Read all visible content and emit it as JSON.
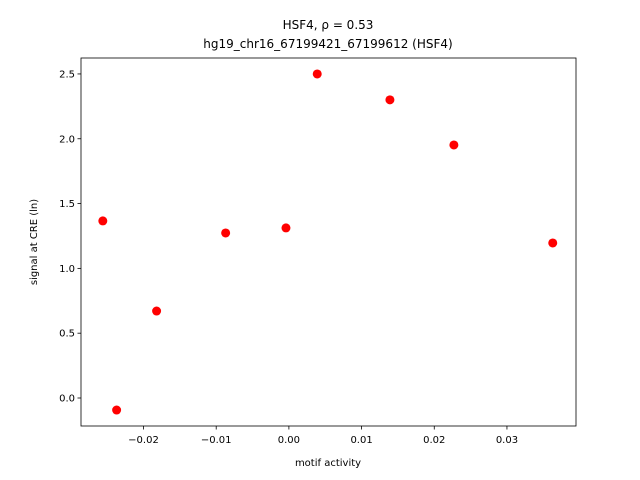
{
  "chart_data": {
    "type": "scatter",
    "title": "HSF4, ρ = 0.53",
    "subtitle": "hg19_chr16_67199421_67199612 (HSF4)",
    "x_label": "motif activity",
    "y_label": "signal at CRE (ln)",
    "color": "#ff0000",
    "x": [
      -0.0256,
      -0.0237,
      -0.0182,
      -0.0087,
      -0.0004,
      0.0039,
      0.0139,
      0.0227,
      0.0363
    ],
    "values": [
      1.366,
      -0.093,
      0.671,
      1.273,
      1.312,
      2.5,
      2.3,
      1.952,
      1.196
    ],
    "xlim": [
      -0.0286,
      0.0395
    ],
    "ylim": [
      -0.216,
      2.623
    ],
    "xticks": [
      {
        "value": -0.02,
        "label": "−0.02"
      },
      {
        "value": -0.01,
        "label": "−0.01"
      },
      {
        "value": 0,
        "label": "0.00"
      },
      0.01,
      0.02,
      0.03
    ],
    "yticks": [
      {
        "value": 0,
        "label": "0.0"
      },
      0.5,
      {
        "value": 1,
        "label": "1.0"
      },
      1.5,
      {
        "value": 2,
        "label": "2.0"
      },
      2.5
    ]
  }
}
